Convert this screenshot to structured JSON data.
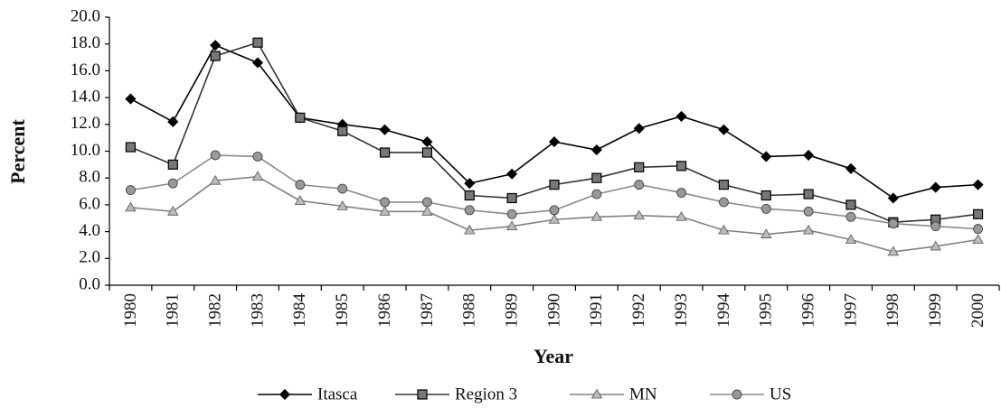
{
  "chart_data": {
    "type": "line",
    "x_label": "Year",
    "y_label": "Percent",
    "categories": [
      "1980",
      "1981",
      "1982",
      "1983",
      "1984",
      "1985",
      "1986",
      "1987",
      "1988",
      "1989",
      "1990",
      "1991",
      "1992",
      "1993",
      "1994",
      "1995",
      "1996",
      "1997",
      "1998",
      "1999",
      "2000"
    ],
    "series": [
      {
        "name": "Itasca",
        "color": "#000000",
        "marker": "diamond",
        "values": [
          13.9,
          12.2,
          17.9,
          16.6,
          12.5,
          12.0,
          11.6,
          10.7,
          7.6,
          8.3,
          10.7,
          10.1,
          11.7,
          12.6,
          11.6,
          9.6,
          9.7,
          8.7,
          6.5,
          7.3,
          7.5
        ]
      },
      {
        "name": "Region 3",
        "color": "#333333",
        "marker": "square",
        "values": [
          10.3,
          9.0,
          17.1,
          18.1,
          12.5,
          11.5,
          9.9,
          9.9,
          6.7,
          6.5,
          7.5,
          8.0,
          8.8,
          8.9,
          7.5,
          6.7,
          6.8,
          6.0,
          4.7,
          4.9,
          5.3
        ]
      },
      {
        "name": "MN",
        "color": "#808080",
        "marker": "triangle",
        "values": [
          5.8,
          5.5,
          7.8,
          8.1,
          6.3,
          5.9,
          5.5,
          5.5,
          4.1,
          4.4,
          4.9,
          5.1,
          5.2,
          5.1,
          4.1,
          3.8,
          4.1,
          3.4,
          2.5,
          2.9,
          3.4
        ]
      },
      {
        "name": "US",
        "color": "#8a8a8a",
        "marker": "circle",
        "values": [
          7.1,
          7.6,
          9.7,
          9.6,
          7.5,
          7.2,
          6.2,
          6.2,
          5.6,
          5.3,
          5.6,
          6.8,
          7.5,
          6.9,
          6.2,
          5.7,
          5.5,
          5.1,
          4.6,
          4.4,
          4.2
        ]
      }
    ],
    "ylim": [
      0,
      20
    ],
    "yticks": [
      {
        "value": 0,
        "label": "0.0"
      },
      {
        "value": 2,
        "label": "2.0"
      },
      {
        "value": 4,
        "label": "4.0"
      },
      {
        "value": 6,
        "label": "6.0"
      },
      {
        "value": 8,
        "label": "8.0"
      },
      {
        "value": 10,
        "label": "10.0"
      },
      {
        "value": 12,
        "label": "12.0"
      },
      {
        "value": 14,
        "label": "14.0"
      },
      {
        "value": 16,
        "label": "16.0"
      },
      {
        "value": 18,
        "label": "18.0"
      },
      {
        "value": 20,
        "label": "20.0"
      }
    ],
    "grid": false,
    "legend": "bottom"
  }
}
